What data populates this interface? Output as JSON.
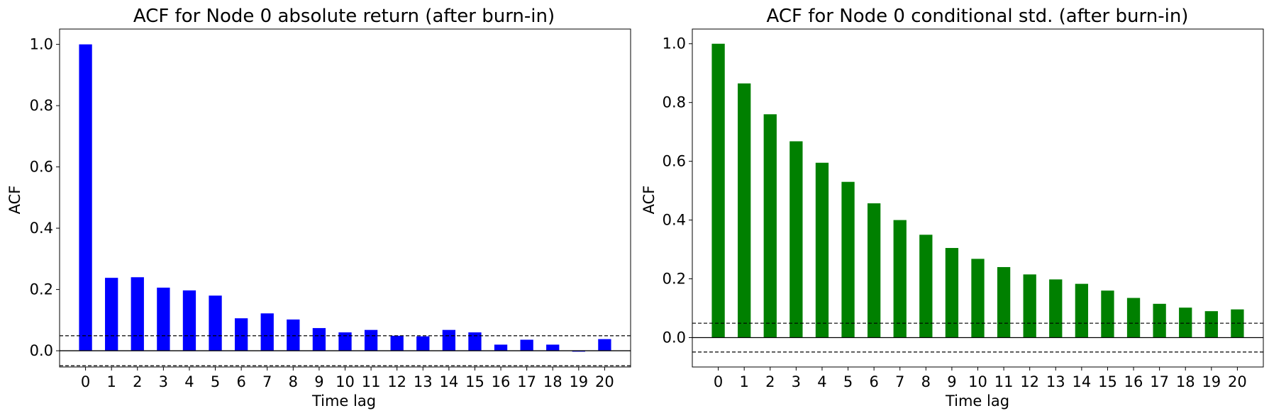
{
  "chart_data": [
    {
      "type": "bar",
      "title": "ACF for Node 0 absolute return (after burn-in)",
      "xlabel": "Time lag",
      "ylabel": "ACF",
      "categories": [
        "0",
        "1",
        "2",
        "3",
        "4",
        "5",
        "6",
        "7",
        "8",
        "9",
        "10",
        "11",
        "12",
        "13",
        "14",
        "15",
        "16",
        "17",
        "18",
        "19",
        "20"
      ],
      "values": [
        1.0,
        0.238,
        0.24,
        0.206,
        0.197,
        0.18,
        0.106,
        0.122,
        0.102,
        0.074,
        0.06,
        0.068,
        0.049,
        0.047,
        0.068,
        0.06,
        0.02,
        0.036,
        0.02,
        -0.003,
        0.038
      ],
      "ylim": [
        -0.053,
        1.05
      ],
      "yticks": [
        0.0,
        0.2,
        0.4,
        0.6,
        0.8,
        1.0
      ],
      "ytick_labels": [
        "0.0",
        "0.2",
        "0.4",
        "0.6",
        "0.8",
        "1.0"
      ],
      "confidence_band": [
        -0.049,
        0.049
      ],
      "bar_color": "#0000ff",
      "grid": false
    },
    {
      "type": "bar",
      "title": "ACF for Node 0 conditional std. (after burn-in)",
      "xlabel": "Time lag",
      "ylabel": "ACF",
      "categories": [
        "0",
        "1",
        "2",
        "3",
        "4",
        "5",
        "6",
        "7",
        "8",
        "9",
        "10",
        "11",
        "12",
        "13",
        "14",
        "15",
        "16",
        "17",
        "18",
        "19",
        "20"
      ],
      "values": [
        1.0,
        0.865,
        0.76,
        0.668,
        0.595,
        0.53,
        0.457,
        0.4,
        0.35,
        0.305,
        0.268,
        0.24,
        0.215,
        0.198,
        0.183,
        0.16,
        0.135,
        0.115,
        0.102,
        0.09,
        0.096
      ],
      "ylim": [
        -0.1,
        1.05
      ],
      "yticks": [
        0.0,
        0.2,
        0.4,
        0.6,
        0.8,
        1.0
      ],
      "ytick_labels": [
        "0.0",
        "0.2",
        "0.4",
        "0.6",
        "0.8",
        "1.0"
      ],
      "confidence_band": [
        -0.049,
        0.049
      ],
      "bar_color": "#008000",
      "grid": false
    }
  ]
}
